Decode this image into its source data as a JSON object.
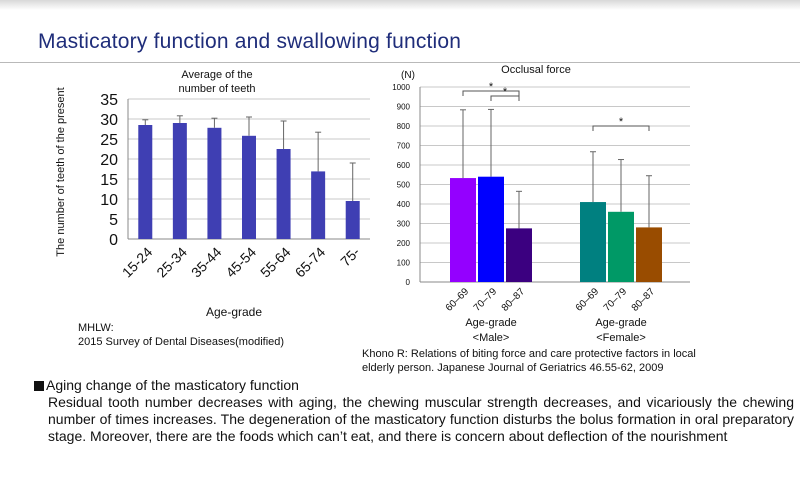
{
  "page": {
    "title": "Masticatory function and swallowing function"
  },
  "chart_data": [
    {
      "type": "bar",
      "title": "Average of the number of teeth",
      "title_lines": [
        "Average of the",
        "number of teeth"
      ],
      "xlabel": "Age-grade",
      "ylabel": "The number of teeth of the present",
      "categories": [
        "15-24",
        "25-34",
        "35-44",
        "45-54",
        "55-64",
        "65-74",
        "75-"
      ],
      "values": [
        28.5,
        29,
        27.8,
        25.8,
        22.5,
        16.9,
        9.5
      ],
      "error_upper": [
        29.8,
        30.8,
        30.2,
        30.5,
        29.5,
        26.7,
        19
      ],
      "ylim": [
        0,
        35
      ],
      "yticks": [
        0,
        5,
        10,
        15,
        20,
        25,
        30,
        35
      ],
      "color": "#3f3fb3",
      "grid": true,
      "source": [
        "MHLW:",
        "2015 Survey of Dental Diseases(modified)"
      ]
    },
    {
      "type": "bar",
      "title": "Occlusal force",
      "unit": "(N)",
      "xlabel": "Age-grade",
      "groups": [
        {
          "label": "<Male>",
          "categories": [
            "60–69",
            "70–79",
            "80–87"
          ],
          "values": [
            533,
            540,
            275
          ],
          "error_upper": [
            883,
            885,
            465
          ],
          "colors": [
            "#9400ff",
            "#0000ff",
            "#3b0080"
          ],
          "significance": [
            [
              0,
              2,
              "*"
            ],
            [
              1,
              2,
              "*"
            ]
          ]
        },
        {
          "label": "<Female>",
          "categories": [
            "60–69",
            "70–79",
            "80–87"
          ],
          "values": [
            410,
            360,
            280
          ],
          "error_upper": [
            668,
            628,
            545
          ],
          "colors": [
            "#008080",
            "#009966",
            "#994c00"
          ],
          "significance": [
            [
              0,
              2,
              "*"
            ]
          ]
        }
      ],
      "ylim": [
        0,
        1000
      ],
      "yticks": [
        0,
        100,
        200,
        300,
        400,
        500,
        600,
        700,
        800,
        900,
        1000
      ],
      "grid": true,
      "source": [
        "Khono R: Relations of biting force and care protective factors in local",
        "elderly person. Japanese Journal of Geriatrics 46.55-62, 2009"
      ]
    }
  ],
  "section": {
    "heading": "Aging change of the masticatory function",
    "body": "Residual tooth number decreases with aging, the chewing muscular strength decreases, and vicariously the chewing number of times  increases. The degeneration   of the masticatory function disturbs the bolus formation in oral preparatory stage.  Moreover, there are the foods which can’t eat, and there is concern about deflection of the  nourishment"
  }
}
